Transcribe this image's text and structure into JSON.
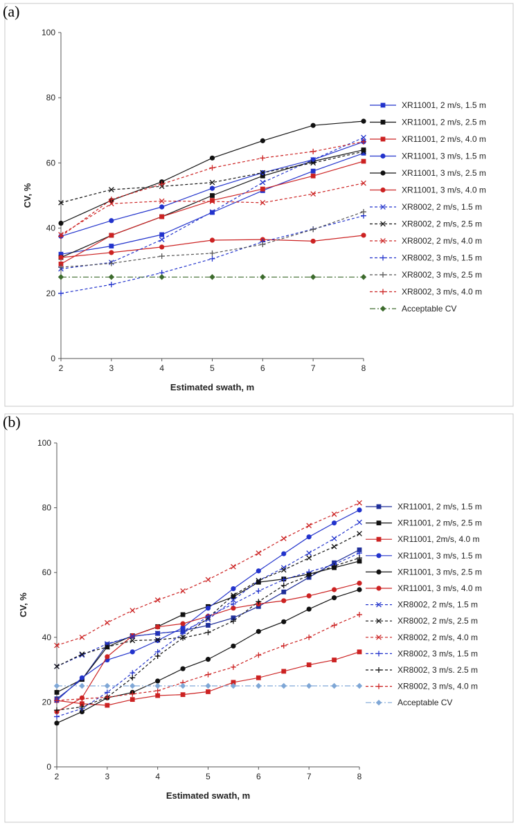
{
  "chart_data": [
    {
      "type": "line",
      "panel_label": "(a)",
      "xlabel": "Estimated swath, m",
      "ylabel": "CV, %",
      "xlim": [
        2,
        8
      ],
      "ylim": [
        0,
        100
      ],
      "xticks": [
        "2",
        "3",
        "4",
        "5",
        "6",
        "7",
        "8"
      ],
      "yticks": [
        "0",
        "20",
        "40",
        "60",
        "80",
        "100"
      ],
      "legend_position": "right",
      "series": [
        {
          "name": "XR11001, 2 m/s, 1.5 m",
          "color": "#2233cc",
          "marker": "square",
          "dash": "solid",
          "x": [
            2,
            3,
            4,
            5,
            6,
            7,
            8
          ],
          "y": [
            32,
            34.5,
            38,
            44.8,
            51.5,
            57.5,
            63
          ]
        },
        {
          "name": "XR11001, 2 m/s, 2.5 m",
          "color": "#111111",
          "marker": "square",
          "dash": "solid",
          "x": [
            2,
            3,
            4,
            5,
            6,
            7,
            8
          ],
          "y": [
            31,
            37.8,
            43.5,
            50,
            56,
            60.5,
            64
          ]
        },
        {
          "name": "XR11001, 2 m/s, 4.0 m",
          "color": "#cc2222",
          "marker": "square",
          "dash": "solid",
          "x": [
            2,
            3,
            4,
            5,
            6,
            7,
            8
          ],
          "y": [
            29,
            37.8,
            43.5,
            48.5,
            52,
            56,
            60.5
          ]
        },
        {
          "name": "XR11001, 3 m/s, 1.5 m",
          "color": "#2233cc",
          "marker": "circle",
          "dash": "solid",
          "x": [
            2,
            3,
            4,
            5,
            6,
            7,
            8
          ],
          "y": [
            37.5,
            42.3,
            46.5,
            52.2,
            57,
            61,
            66.5
          ]
        },
        {
          "name": "XR11001, 3 m/s, 2.5 m",
          "color": "#111111",
          "marker": "circle",
          "dash": "solid",
          "x": [
            2,
            3,
            4,
            5,
            6,
            7,
            8
          ],
          "y": [
            41.5,
            48.5,
            54.2,
            61.5,
            66.8,
            71.5,
            72.8
          ]
        },
        {
          "name": "XR11001, 3 m/s, 4.0 m",
          "color": "#cc2222",
          "marker": "circle",
          "dash": "solid",
          "x": [
            2,
            3,
            4,
            5,
            6,
            7,
            8
          ],
          "y": [
            31,
            32.5,
            34.2,
            36.3,
            36.5,
            36,
            37.8
          ]
        },
        {
          "name": "XR8002, 2 m/s, 1.5 m",
          "color": "#2233cc",
          "marker": "x",
          "dash": "dashed",
          "x": [
            2,
            3,
            4,
            5,
            6,
            7,
            8
          ],
          "y": [
            27.5,
            29.5,
            36.5,
            45,
            54,
            61,
            67.8
          ]
        },
        {
          "name": "XR8002, 2 m/s, 2.5 m",
          "color": "#111111",
          "marker": "x",
          "dash": "dashed",
          "x": [
            2,
            3,
            4,
            5,
            6,
            7,
            8
          ],
          "y": [
            47.8,
            51.8,
            52.8,
            54,
            57,
            60,
            63.5
          ]
        },
        {
          "name": "XR8002, 2 m/s, 4.0 m",
          "color": "#cc2222",
          "marker": "x",
          "dash": "dashed",
          "x": [
            2,
            3,
            4,
            5,
            6,
            7,
            8
          ],
          "y": [
            38,
            47.5,
            48.3,
            48.2,
            47.8,
            50.5,
            53.8
          ]
        },
        {
          "name": "XR8002, 3 m/s, 1.5 m",
          "color": "#2233cc",
          "marker": "plus",
          "dash": "dashed",
          "x": [
            2,
            3,
            4,
            5,
            6,
            7,
            8
          ],
          "y": [
            20,
            22.7,
            26.3,
            30.6,
            35.8,
            39.7,
            43.8
          ]
        },
        {
          "name": "XR8002, 3 m/s, 2.5 m",
          "color": "#555555",
          "marker": "plus",
          "dash": "dashed",
          "x": [
            2,
            3,
            4,
            5,
            6,
            7,
            8
          ],
          "y": [
            28,
            29.2,
            31.4,
            32.3,
            35,
            39.6,
            45
          ]
        },
        {
          "name": "XR8002, 3 m/s, 4.0 m",
          "color": "#cc2222",
          "marker": "plus",
          "dash": "dashed",
          "x": [
            2,
            3,
            4,
            5,
            6,
            7,
            8
          ],
          "y": [
            37.5,
            48.8,
            53.5,
            58.5,
            61.5,
            63.5,
            66.5
          ]
        },
        {
          "name": "Acceptable CV",
          "color": "#3d6b2d",
          "marker": "diamond",
          "dash": "dashdot",
          "x": [
            2,
            3,
            4,
            5,
            6,
            7,
            8
          ],
          "y": [
            25,
            25,
            25,
            25,
            25,
            25,
            25
          ]
        }
      ]
    },
    {
      "type": "line",
      "panel_label": "(b)",
      "xlabel": "Estimated swath, m",
      "ylabel": "CV, %",
      "xlim": [
        2,
        8
      ],
      "ylim": [
        0,
        100
      ],
      "xticks": [
        "2",
        "3",
        "4",
        "5",
        "6",
        "7",
        "8"
      ],
      "yticks": [
        "0",
        "20",
        "40",
        "60",
        "80",
        "100"
      ],
      "legend_position": "right",
      "series": [
        {
          "name": "XR11001, 2 m/s, 1.5 m",
          "color": "#1f2f99",
          "marker": "square",
          "dash": "solid",
          "x": [
            2,
            2.5,
            3,
            3.5,
            4,
            4.5,
            5,
            5.5,
            6,
            6.5,
            7,
            7.5,
            8
          ],
          "y": [
            21,
            27,
            37.8,
            40.3,
            41.2,
            42,
            43.7,
            46,
            49.5,
            54,
            58.5,
            63,
            67
          ]
        },
        {
          "name": "XR11001, 2 m/s, 2.5 m",
          "color": "#111111",
          "marker": "square",
          "dash": "solid",
          "x": [
            2,
            2.5,
            3,
            3.5,
            4,
            4.5,
            5,
            5.5,
            6,
            6.5,
            7,
            7.5,
            8
          ],
          "y": [
            23,
            27,
            37,
            40.5,
            43.3,
            47,
            49.5,
            52.5,
            57,
            58,
            59.5,
            61.5,
            63.5
          ]
        },
        {
          "name": "XR11001, 2m/s, 4.0 m",
          "color": "#cc2222",
          "marker": "square",
          "dash": "solid",
          "x": [
            2,
            2.5,
            3,
            3.5,
            4,
            4.5,
            5,
            5.5,
            6,
            6.5,
            7,
            7.5,
            8
          ],
          "y": [
            20.5,
            19.5,
            19,
            20.8,
            22,
            22.3,
            23.2,
            26.1,
            27.5,
            29.5,
            31.5,
            33,
            35.5
          ]
        },
        {
          "name": "XR11001, 3 m/s, 1.5 m",
          "color": "#2233cc",
          "marker": "circle",
          "dash": "solid",
          "x": [
            2,
            2.5,
            3,
            3.5,
            4,
            4.5,
            5,
            5.5,
            6,
            6.5,
            7,
            7.5,
            8
          ],
          "y": [
            20.5,
            27.5,
            33,
            35.5,
            39,
            43,
            49,
            55,
            60.5,
            65.8,
            71,
            75.3,
            79.3
          ]
        },
        {
          "name": "XR11001, 3 m/s, 2.5 m",
          "color": "#111111",
          "marker": "circle",
          "dash": "solid",
          "x": [
            2,
            2.5,
            3,
            3.5,
            4,
            4.5,
            5,
            5.5,
            6,
            6.5,
            7,
            7.5,
            8
          ],
          "y": [
            13.5,
            17,
            21.3,
            23,
            26.5,
            30.3,
            33.2,
            37.3,
            41.8,
            44.8,
            48.7,
            52.2,
            54.7
          ]
        },
        {
          "name": "XR11001, 3 m/s, 4.0 m",
          "color": "#cc2222",
          "marker": "circle",
          "dash": "solid",
          "x": [
            2,
            2.5,
            3,
            3.5,
            4,
            4.5,
            5,
            5.5,
            6,
            6.5,
            7,
            7.5,
            8
          ],
          "y": [
            17,
            21.3,
            34,
            40.5,
            43.2,
            44.2,
            46.5,
            49,
            50.3,
            51.3,
            52.8,
            54.7,
            56.7
          ]
        },
        {
          "name": "XR8002, 2 m/s, 1.5 m",
          "color": "#2233cc",
          "marker": "x",
          "dash": "dashed",
          "x": [
            2,
            2.5,
            3,
            3.5,
            4,
            4.5,
            5,
            5.5,
            6,
            6.5,
            7,
            7.5,
            8
          ],
          "y": [
            31,
            34.5,
            38,
            40.3,
            41.2,
            42,
            45.5,
            51.5,
            57.5,
            61.5,
            66,
            70.5,
            75.5
          ]
        },
        {
          "name": "XR8002, 2 m/s, 2.5 m",
          "color": "#111111",
          "marker": "x",
          "dash": "dashed",
          "x": [
            2,
            2.5,
            3,
            3.5,
            4,
            4.5,
            5,
            5.5,
            6,
            6.5,
            7,
            7.5,
            8
          ],
          "y": [
            31,
            34.8,
            37,
            39,
            39.2,
            40,
            46,
            53,
            57.5,
            60.8,
            64.5,
            68,
            72
          ]
        },
        {
          "name": "XR8002, 2 m/s, 4.0 m",
          "color": "#cc2222",
          "marker": "x",
          "dash": "dashed",
          "x": [
            2,
            2.5,
            3,
            3.5,
            4,
            4.5,
            5,
            5.5,
            6,
            6.5,
            7,
            7.5,
            8
          ],
          "y": [
            37.5,
            40,
            44.5,
            48.3,
            51.5,
            54.3,
            57.8,
            61.8,
            66,
            70.5,
            74.5,
            78,
            81.5
          ]
        },
        {
          "name": "XR8002, 3 m/s, 1.5 m",
          "color": "#2233cc",
          "marker": "plus",
          "dash": "dashed",
          "x": [
            2,
            2.5,
            3,
            3.5,
            4,
            4.5,
            5,
            5.5,
            6,
            6.5,
            7,
            7.5,
            8
          ],
          "y": [
            15.5,
            18,
            23,
            29,
            35.5,
            41.2,
            46.5,
            50.3,
            54.3,
            57.8,
            60.2,
            62.5,
            66
          ]
        },
        {
          "name": "XR8002, 3 m/s. 2.5 m",
          "color": "#111111",
          "marker": "plus",
          "dash": "dashed",
          "x": [
            2,
            2.5,
            3,
            3.5,
            4,
            4.5,
            5,
            5.5,
            6,
            6.5,
            7,
            7.5,
            8
          ],
          "y": [
            17.5,
            18.5,
            21.5,
            27.5,
            34.2,
            39.8,
            41.5,
            45,
            51,
            56,
            59,
            62,
            64.5
          ]
        },
        {
          "name": "XR8002, 3 m/s, 4.0 m",
          "color": "#cc2222",
          "marker": "plus",
          "dash": "dashed",
          "x": [
            2,
            2.5,
            3,
            3.5,
            4,
            4.5,
            5,
            5.5,
            6,
            6.5,
            7,
            7.5,
            8
          ],
          "y": [
            20.5,
            21,
            21.5,
            22.5,
            23.5,
            26,
            28.5,
            30.8,
            34.5,
            37.4,
            40,
            43.7,
            47
          ]
        },
        {
          "name": "Acceptable CV",
          "color": "#7fa7d6",
          "marker": "diamond",
          "dash": "dashdot",
          "x": [
            2,
            2.5,
            3,
            3.5,
            4,
            4.5,
            5,
            5.5,
            6,
            6.5,
            7,
            7.5,
            8
          ],
          "y": [
            25,
            25,
            25,
            25,
            25,
            25,
            25,
            25,
            25,
            25,
            25,
            25,
            25
          ]
        }
      ]
    }
  ]
}
